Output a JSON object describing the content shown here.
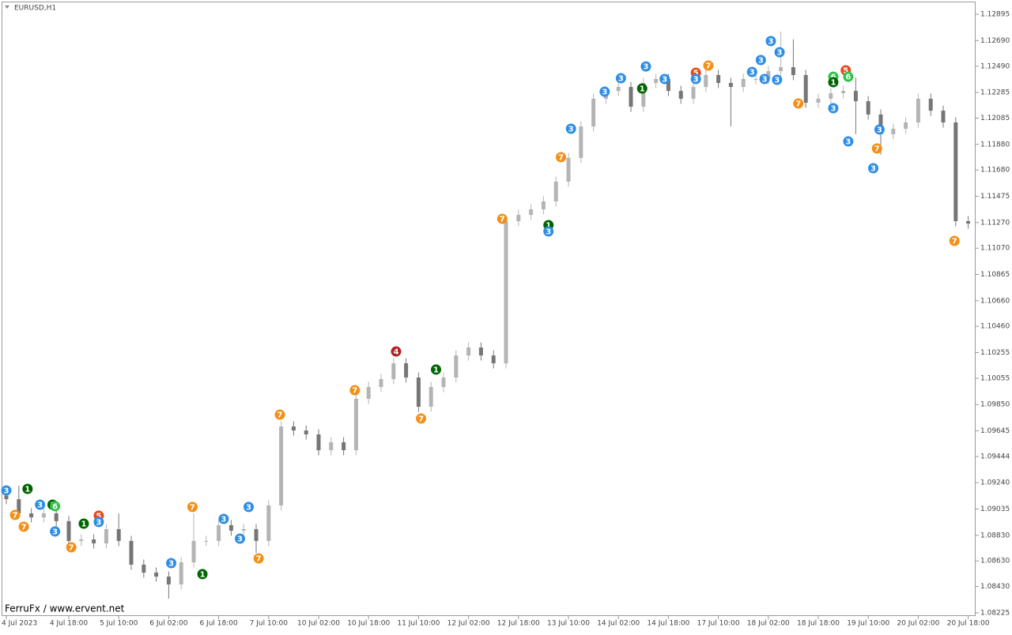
{
  "chart_data": {
    "type": "candlestick",
    "title": "EURUSD,H1",
    "footer": "FerruFx / www.ervent.net",
    "categories": [
      "4 Jul 2023",
      null,
      null,
      null,
      null,
      "4 Jul 18:00",
      null,
      null,
      null,
      "5 Jul 10:00",
      null,
      null,
      null,
      "6 Jul 02:00",
      null,
      null,
      null,
      "6 Jul 18:00",
      null,
      null,
      null,
      "7 Jul 10:00",
      null,
      null,
      null,
      "10 Jul 02:00",
      null,
      null,
      null,
      "10 Jul 18:00",
      null,
      null,
      null,
      "11 Jul 10:00",
      null,
      null,
      null,
      "12 Jul 02:00",
      null,
      null,
      null,
      "12 Jul 18:00",
      null,
      null,
      null,
      "13 Jul 10:00",
      null,
      null,
      null,
      "14 Jul 02:00",
      null,
      null,
      null,
      "14 Jul 18:00",
      null,
      null,
      null,
      "17 Jul 10:00",
      null,
      null,
      null,
      "18 Jul 02:00",
      null,
      null,
      null,
      "18 Jul 18:00",
      null,
      null,
      null,
      "19 Jul 10:00",
      null,
      null,
      null,
      "20 Jul 02:00",
      null,
      null,
      null,
      "20 Jul 18:00"
    ],
    "open": [
      1.0914,
      1.09112,
      1.09001,
      1.0897,
      1.09001,
      1.0894,
      1.08786,
      1.08798,
      1.08767,
      1.08878,
      1.08786,
      1.08601,
      1.08539,
      1.08508,
      1.08447,
      1.08619,
      1.08786,
      1.08786,
      1.08909,
      1.08866,
      1.08878,
      1.08786,
      1.09063,
      1.09679,
      1.09648,
      1.09617,
      1.09494,
      1.09556,
      1.09494,
      1.09895,
      1.09987,
      1.10049,
      1.10172,
      1.10061,
      1.09833,
      1.09987,
      1.10061,
      1.10233,
      1.10295,
      1.10233,
      1.10172,
      1.11281,
      1.1133,
      1.11373,
      1.11435,
      1.11589,
      1.11774,
      1.1202,
      1.12236,
      1.12297,
      1.12328,
      1.12174,
      1.12359,
      1.1239,
      1.12297,
      1.12236,
      1.12328,
      1.12421,
      1.12359,
      1.12328,
      1.1239,
      1.1239,
      1.12451,
      1.12482,
      1.12421,
      1.12205,
      1.12236,
      1.12279,
      1.12297,
      1.12217,
      1.12113,
      1.11959,
      1.12002,
      1.12051,
      1.12236,
      1.12143,
      1.12051,
      1.11281
    ],
    "high": [
      1.0918,
      1.09217,
      1.09041,
      1.09041,
      1.09041,
      1.0898,
      1.08838,
      1.08838,
      1.08918,
      1.09001,
      1.08826,
      1.08641,
      1.08579,
      1.08548,
      1.08659,
      1.09001,
      1.08826,
      1.08949,
      1.08949,
      1.08918,
      1.08918,
      1.09103,
      1.09719,
      1.09719,
      1.09688,
      1.09657,
      1.09596,
      1.09596,
      1.09935,
      1.10027,
      1.10089,
      1.10212,
      1.10212,
      1.10101,
      1.10027,
      1.10101,
      1.10273,
      1.10335,
      1.10335,
      1.10273,
      1.11321,
      1.1137,
      1.11413,
      1.11475,
      1.11629,
      1.11814,
      1.1206,
      1.12276,
      1.12337,
      1.12368,
      1.12368,
      1.12399,
      1.1243,
      1.1243,
      1.12337,
      1.12368,
      1.12461,
      1.12461,
      1.12399,
      1.1243,
      1.1243,
      1.12491,
      1.1276,
      1.127,
      1.12461,
      1.12276,
      1.12319,
      1.12337,
      1.124,
      1.12257,
      1.12153,
      1.12042,
      1.12091,
      1.12276,
      1.12276,
      1.12183,
      1.12091,
      1.11321
    ],
    "low": [
      1.09072,
      1.08961,
      1.0893,
      1.0893,
      1.089,
      1.08746,
      1.08746,
      1.08727,
      1.08727,
      1.08746,
      1.08561,
      1.08499,
      1.08468,
      1.08336,
      1.08407,
      1.08579,
      1.08746,
      1.08746,
      1.08826,
      1.08826,
      1.08693,
      1.08746,
      1.09023,
      1.09608,
      1.09577,
      1.09454,
      1.09454,
      1.09454,
      1.09454,
      1.09855,
      1.09947,
      1.10009,
      1.10021,
      1.09793,
      1.09793,
      1.09947,
      1.10021,
      1.10193,
      1.10193,
      1.10132,
      1.10132,
      1.11241,
      1.1129,
      1.11333,
      1.11395,
      1.11549,
      1.11734,
      1.1198,
      1.12196,
      1.12257,
      1.12134,
      1.12134,
      1.12319,
      1.12257,
      1.12196,
      1.12196,
      1.12288,
      1.12319,
      1.1202,
      1.12288,
      1.1235,
      1.1235,
      1.12411,
      1.12381,
      1.12165,
      1.12165,
      1.12196,
      1.12239,
      1.1196,
      1.12073,
      1.118,
      1.11919,
      1.11962,
      1.12011,
      1.12103,
      1.12011,
      1.11241,
      1.11222
    ],
    "close": [
      1.09112,
      1.09001,
      1.0897,
      1.09001,
      1.0894,
      1.08786,
      1.08798,
      1.08767,
      1.08878,
      1.08786,
      1.08601,
      1.08539,
      1.08508,
      1.08447,
      1.08619,
      1.08786,
      1.08786,
      1.08909,
      1.08866,
      1.08878,
      1.08786,
      1.09063,
      1.09679,
      1.09648,
      1.09617,
      1.09494,
      1.09556,
      1.09494,
      1.09895,
      1.09987,
      1.10049,
      1.10172,
      1.10061,
      1.09833,
      1.09987,
      1.10061,
      1.10233,
      1.10295,
      1.10233,
      1.10172,
      1.11281,
      1.1133,
      1.11373,
      1.11435,
      1.11589,
      1.11774,
      1.1202,
      1.12236,
      1.12297,
      1.12328,
      1.12174,
      1.12359,
      1.1239,
      1.12297,
      1.12236,
      1.12328,
      1.12421,
      1.12359,
      1.12328,
      1.1239,
      1.1239,
      1.12451,
      1.12482,
      1.12421,
      1.12205,
      1.12236,
      1.12279,
      1.12297,
      1.12217,
      1.12113,
      1.11959,
      1.12002,
      1.12051,
      1.12236,
      1.12143,
      1.12051,
      1.11281,
      1.11262
    ],
    "up_color": "#b4b4b4",
    "down_color": "#767676",
    "ylim": [
      1.082,
      1.12994
    ],
    "yticks": [
      1.12895,
      {
        "value": 1.1269,
        "label": "1.12690"
      },
      {
        "value": 1.1249,
        "label": "1.12490"
      },
      1.12285,
      1.12085,
      {
        "value": 1.1188,
        "label": "1.11880"
      },
      {
        "value": 1.1168,
        "label": "1.11680"
      },
      1.11475,
      {
        "value": 1.1127,
        "label": "1.11270"
      },
      {
        "value": 1.1107,
        "label": "1.11070"
      },
      1.10865,
      {
        "value": 1.1066,
        "label": "1.10660"
      },
      {
        "value": 1.1046,
        "label": "1.10460"
      },
      1.10255,
      1.10055,
      {
        "value": 1.0985,
        "label": "1.09850"
      },
      1.09645,
      1.09444,
      {
        "value": 1.0924,
        "label": "1.09240"
      },
      1.09035,
      {
        "value": 1.0883,
        "label": "1.08830"
      },
      {
        "value": 1.0863,
        "label": "1.08630"
      },
      {
        "value": 1.0843,
        "label": "1.08430"
      },
      1.08225
    ],
    "grid": false,
    "marker_colors": {
      "1": "#006400",
      "3": "#2e8ee6",
      "4": "#b22222",
      "5": "#e8481c",
      "6": "#33c24a",
      "7": "#f29018"
    },
    "markers": [
      {
        "x": 0,
        "y": 1.0918,
        "label": 3
      },
      {
        "x": 0.7,
        "y": 1.08989,
        "label": 7
      },
      {
        "x": 1.4,
        "y": 1.08897,
        "label": 7
      },
      {
        "x": 1.7,
        "y": 1.09192,
        "label": 1
      },
      {
        "x": 2.7,
        "y": 1.09069,
        "label": 3
      },
      {
        "x": 3.7,
        "y": 1.09069,
        "label": 1
      },
      {
        "x": 3.9,
        "y": 1.09057,
        "label": 6
      },
      {
        "x": 3.9,
        "y": 1.0886,
        "label": 3
      },
      {
        "x": 5.2,
        "y": 1.08736,
        "label": 7
      },
      {
        "x": 6.2,
        "y": 1.08921,
        "label": 1
      },
      {
        "x": 7.4,
        "y": 1.08983,
        "label": 5
      },
      {
        "x": 7.4,
        "y": 1.08934,
        "label": 3
      },
      {
        "x": 13.2,
        "y": 1.08613,
        "label": 3
      },
      {
        "x": 14.9,
        "y": 1.09051,
        "label": 7
      },
      {
        "x": 15.7,
        "y": 1.08527,
        "label": 1
      },
      {
        "x": 17.4,
        "y": 1.08958,
        "label": 3
      },
      {
        "x": 18.7,
        "y": 1.08804,
        "label": 3
      },
      {
        "x": 19.4,
        "y": 1.09051,
        "label": 3
      },
      {
        "x": 20.2,
        "y": 1.0865,
        "label": 7
      },
      {
        "x": 21.9,
        "y": 1.09771,
        "label": 7
      },
      {
        "x": 27.9,
        "y": 1.09962,
        "label": 7
      },
      {
        "x": 31.2,
        "y": 1.10264,
        "label": 4
      },
      {
        "x": 33.2,
        "y": 1.09741,
        "label": 7
      },
      {
        "x": 34.4,
        "y": 1.10123,
        "label": 1
      },
      {
        "x": 39.7,
        "y": 1.11299,
        "label": 7
      },
      {
        "x": 43.4,
        "y": 1.1125,
        "label": 1
      },
      {
        "x": 43.4,
        "y": 1.11201,
        "label": 3
      },
      {
        "x": 44.4,
        "y": 1.1178,
        "label": 7
      },
      {
        "x": 45.2,
        "y": 1.12002,
        "label": 3
      },
      {
        "x": 47.9,
        "y": 1.12291,
        "label": 3
      },
      {
        "x": 49.2,
        "y": 1.12396,
        "label": 3
      },
      {
        "x": 50.9,
        "y": 1.12316,
        "label": 1
      },
      {
        "x": 51.2,
        "y": 1.12488,
        "label": 3
      },
      {
        "x": 52.7,
        "y": 1.1239,
        "label": 3
      },
      {
        "x": 55.2,
        "y": 1.12439,
        "label": 5
      },
      {
        "x": 55.2,
        "y": 1.1239,
        "label": 3
      },
      {
        "x": 56.2,
        "y": 1.12495,
        "label": 7
      },
      {
        "x": 59.7,
        "y": 1.12445,
        "label": 3
      },
      {
        "x": 60.4,
        "y": 1.12538,
        "label": 3
      },
      {
        "x": 60.7,
        "y": 1.1239,
        "label": 3
      },
      {
        "x": 61.2,
        "y": 1.12686,
        "label": 3
      },
      {
        "x": 61.9,
        "y": 1.12599,
        "label": 3
      },
      {
        "x": 61.7,
        "y": 1.12384,
        "label": 3
      },
      {
        "x": 63.4,
        "y": 1.12199,
        "label": 7
      },
      {
        "x": 66.2,
        "y": 1.12408,
        "label": 6
      },
      {
        "x": 66.2,
        "y": 1.12365,
        "label": 1
      },
      {
        "x": 67.2,
        "y": 1.12458,
        "label": 5
      },
      {
        "x": 67.4,
        "y": 1.12408,
        "label": 6
      },
      {
        "x": 66.2,
        "y": 1.12162,
        "label": 3
      },
      {
        "x": 67.4,
        "y": 1.11903,
        "label": 3
      },
      {
        "x": 69.7,
        "y": 1.11848,
        "label": 7
      },
      {
        "x": 69.9,
        "y": 1.11996,
        "label": 3
      },
      {
        "x": 69.4,
        "y": 1.11694,
        "label": 3
      },
      {
        "x": 75.9,
        "y": 1.11127,
        "label": 7
      }
    ]
  }
}
